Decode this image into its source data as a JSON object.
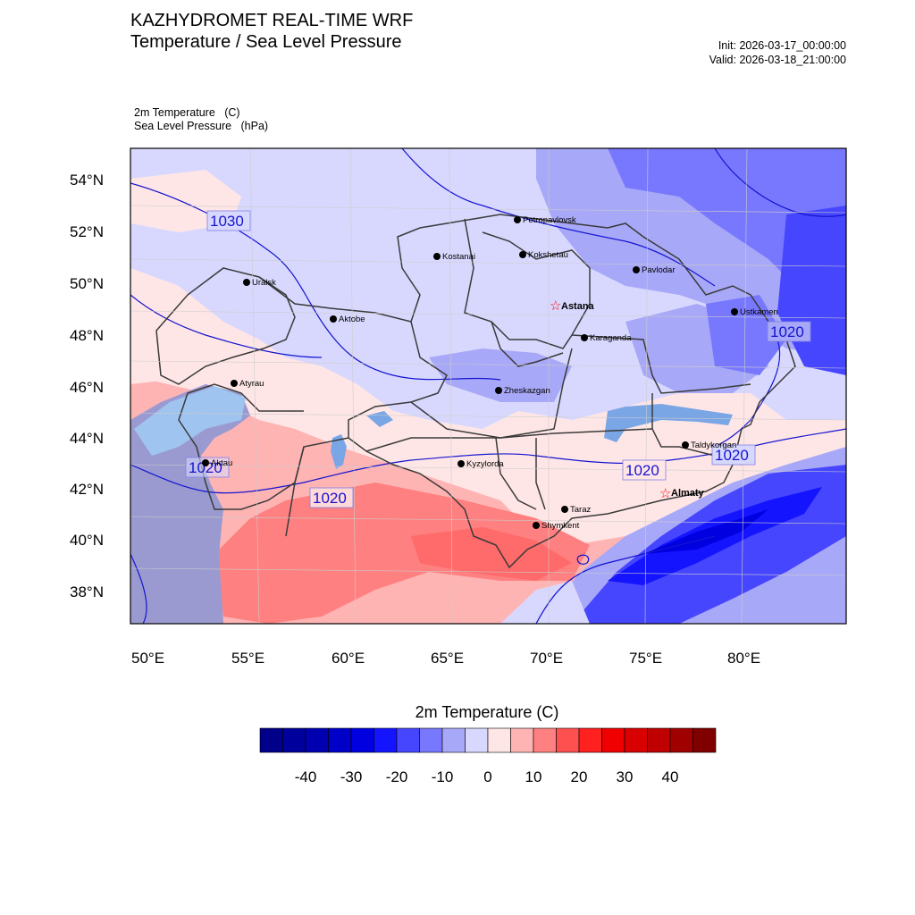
{
  "header": {
    "title_line1": "KAZHYDROMET REAL-TIME WRF",
    "title_line2": "Temperature / Sea Level Pressure",
    "init": "Init: 2026-03-17_00:00:00",
    "valid": "Valid: 2026-03-18_21:00:00"
  },
  "variables": {
    "temp": "2m Temperature   (C)",
    "slp": "Sea Level Pressure   (hPa)"
  },
  "axes": {
    "lat_labels": [
      "54°N",
      "52°N",
      "50°N",
      "48°N",
      "46°N",
      "44°N",
      "42°N",
      "40°N",
      "38°N"
    ],
    "lon_labels": [
      "50°E",
      "55°E",
      "60°E",
      "65°E",
      "70°E",
      "75°E",
      "80°E"
    ]
  },
  "cities": [
    {
      "name": "Petropavlovsk",
      "capital": false
    },
    {
      "name": "Kostanai",
      "capital": false
    },
    {
      "name": "Kokshetau",
      "capital": false
    },
    {
      "name": "Pavlodar",
      "capital": false
    },
    {
      "name": "Uralsk",
      "capital": false
    },
    {
      "name": "Aktobe",
      "capital": false
    },
    {
      "name": "Astana",
      "capital": true
    },
    {
      "name": "Ustkamen",
      "capital": false
    },
    {
      "name": "Karaganda",
      "capital": false
    },
    {
      "name": "Atyrau",
      "capital": false
    },
    {
      "name": "Zheskazgan",
      "capital": false
    },
    {
      "name": "Taldykorgan",
      "capital": false
    },
    {
      "name": "Aktau",
      "capital": false
    },
    {
      "name": "Kyzylorda",
      "capital": false
    },
    {
      "name": "Almaty",
      "capital": true
    },
    {
      "name": "Taraz",
      "capital": false
    },
    {
      "name": "Shymkent",
      "capital": false
    }
  ],
  "contour_labels": [
    "1030",
    "1020",
    "1020",
    "1020",
    "1020",
    "1020"
  ],
  "colorbar": {
    "title": "2m Temperature  (C)",
    "labels": [
      "-40",
      "-30",
      "-20",
      "-10",
      "0",
      "10",
      "20",
      "30",
      "40"
    ],
    "colors": [
      "#00008b",
      "#00009c",
      "#0000b0",
      "#0000c8",
      "#0000e0",
      "#1414ff",
      "#4646ff",
      "#7878ff",
      "#a8a8f8",
      "#d8d8ff",
      "#ffe6e6",
      "#ffb4b4",
      "#ff8080",
      "#ff5050",
      "#ff2020",
      "#f00000",
      "#d80000",
      "#c00000",
      "#a00000",
      "#800000"
    ]
  },
  "palette": {
    "contour": "#1414d0",
    "capital_star": "#ff0000"
  }
}
